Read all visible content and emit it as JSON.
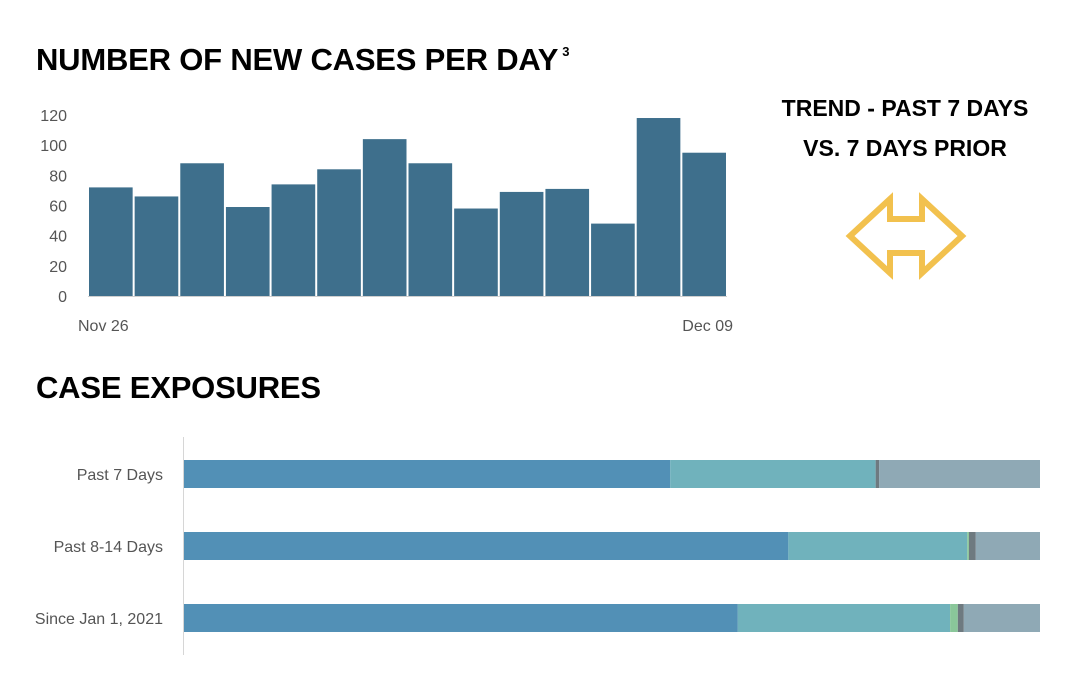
{
  "headings": {
    "daily_title": "NUMBER OF NEW CASES PER DAY",
    "daily_footnote": "3",
    "trend_line1": "TREND - PAST 7 DAYS",
    "trend_line2": "VS. 7 DAYS PRIOR",
    "exposure_title": "CASE EXPOSURES"
  },
  "trend_indicator": {
    "icon": "double-arrow-icon",
    "meaning": "unchanged",
    "color": "#F2C14E"
  },
  "chart_data": [
    {
      "type": "bar",
      "x_tick_labels": [
        "Nov 26",
        "Dec 09"
      ],
      "values": [
        72,
        66,
        88,
        59,
        74,
        84,
        104,
        88,
        58,
        69,
        71,
        48,
        118,
        95
      ],
      "yticks": [
        0,
        20,
        40,
        60,
        80,
        100,
        120
      ],
      "ylim": [
        0,
        120
      ],
      "color": "#3E6F8C",
      "grid": false
    },
    {
      "type": "bar",
      "orientation": "horizontal",
      "stacked": true,
      "normalized": true,
      "categories": [
        "Past 7 Days",
        "Past 8-14 Days",
        "Since Jan 1, 2021"
      ],
      "series": [
        {
          "color": "#5290B6",
          "values": [
            56.8,
            70.6,
            64.7
          ]
        },
        {
          "color": "#70B2BC",
          "values": [
            24.0,
            20.9,
            24.8
          ]
        },
        {
          "color": "#8AC79A",
          "values": [
            0.0,
            0.2,
            0.9
          ]
        },
        {
          "color": "#6E7A80",
          "values": [
            0.4,
            0.8,
            0.7
          ]
        },
        {
          "color": "#8FA9B5",
          "values": [
            18.8,
            7.5,
            8.9
          ]
        }
      ],
      "grid": false
    }
  ]
}
